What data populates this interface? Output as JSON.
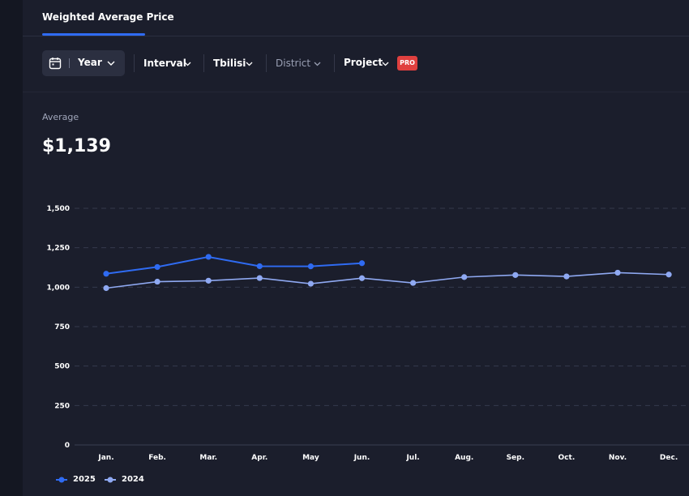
{
  "tab": {
    "label": "Weighted Average Price"
  },
  "filters": {
    "year": "Year",
    "interval": "Interval",
    "city": "Tbilisi",
    "district": "District",
    "project": "Project",
    "pro_badge": "PRO"
  },
  "summary": {
    "label": "Average",
    "value": "$1,139"
  },
  "colors": {
    "series_2025": "#2f6bf2",
    "series_2024": "#8fa9f2",
    "grid": "#353a4d"
  },
  "chart_data": {
    "type": "line",
    "categories": [
      "Jan.",
      "Feb.",
      "Mar.",
      "Apr.",
      "May",
      "Jun.",
      "Jul.",
      "Aug.",
      "Sep.",
      "Oct.",
      "Nov.",
      "Dec."
    ],
    "y_ticks": [
      "0",
      "250",
      "500",
      "750",
      "1,000",
      "1,250",
      "1,500"
    ],
    "ylim": [
      0,
      1500
    ],
    "grid": true,
    "legend_position": "bottom-left",
    "series": [
      {
        "name": "2025",
        "values": [
          1085,
          1128,
          1192,
          1133,
          1132,
          1152,
          null,
          null,
          null,
          null,
          null,
          null
        ]
      },
      {
        "name": "2024",
        "values": [
          994,
          1035,
          1041,
          1058,
          1022,
          1057,
          1027,
          1064,
          1077,
          1068,
          1092,
          1080
        ]
      }
    ]
  }
}
